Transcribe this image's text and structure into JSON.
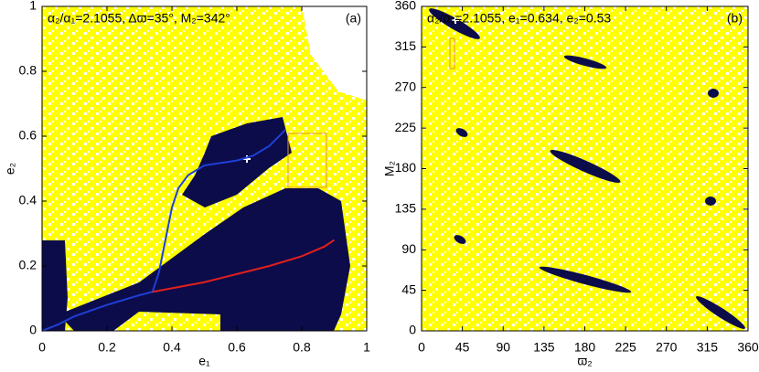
{
  "chart_data": [
    {
      "type": "line",
      "panel": "(a)",
      "annotation": "α₂/α₁=2.1055, Δϖ=35°, M₂=342°",
      "xlabel": "e₁",
      "ylabel": "e₂",
      "xlim": [
        0,
        1
      ],
      "ylim": [
        0,
        1
      ],
      "xticks": [
        0,
        0.2,
        0.4,
        0.6,
        0.8,
        1
      ],
      "yticks": [
        0,
        0.2,
        0.4,
        0.6,
        0.8,
        1
      ],
      "series": [
        {
          "color": "#1f3fd6",
          "x": [
            0,
            0.05,
            0.1,
            0.2,
            0.3,
            0.34,
            0.36,
            0.38,
            0.4,
            0.42,
            0.45,
            0.5,
            0.6,
            0.65,
            0.7,
            0.75
          ],
          "values": [
            0,
            0.02,
            0.045,
            0.08,
            0.11,
            0.12,
            0.18,
            0.28,
            0.38,
            0.44,
            0.48,
            0.51,
            0.525,
            0.54,
            0.57,
            0.62
          ]
        },
        {
          "color": "#e0201c",
          "x": [
            0.34,
            0.5,
            0.6,
            0.7,
            0.8,
            0.87,
            0.9
          ],
          "values": [
            0.12,
            0.15,
            0.175,
            0.2,
            0.23,
            0.26,
            0.28
          ]
        }
      ]
    },
    {
      "type": "map",
      "panel": "(b)",
      "annotation": "α₂/α₁=2.1055, e₁=0.634, e₂=0.53",
      "xlabel": "ϖ₂",
      "ylabel": "M₂",
      "xlim": [
        0,
        360
      ],
      "ylim": [
        0,
        360
      ],
      "xticks": [
        0,
        45,
        90,
        135,
        180,
        225,
        270,
        315,
        360
      ],
      "yticks": [
        0,
        45,
        90,
        135,
        180,
        225,
        270,
        315,
        360
      ]
    }
  ]
}
